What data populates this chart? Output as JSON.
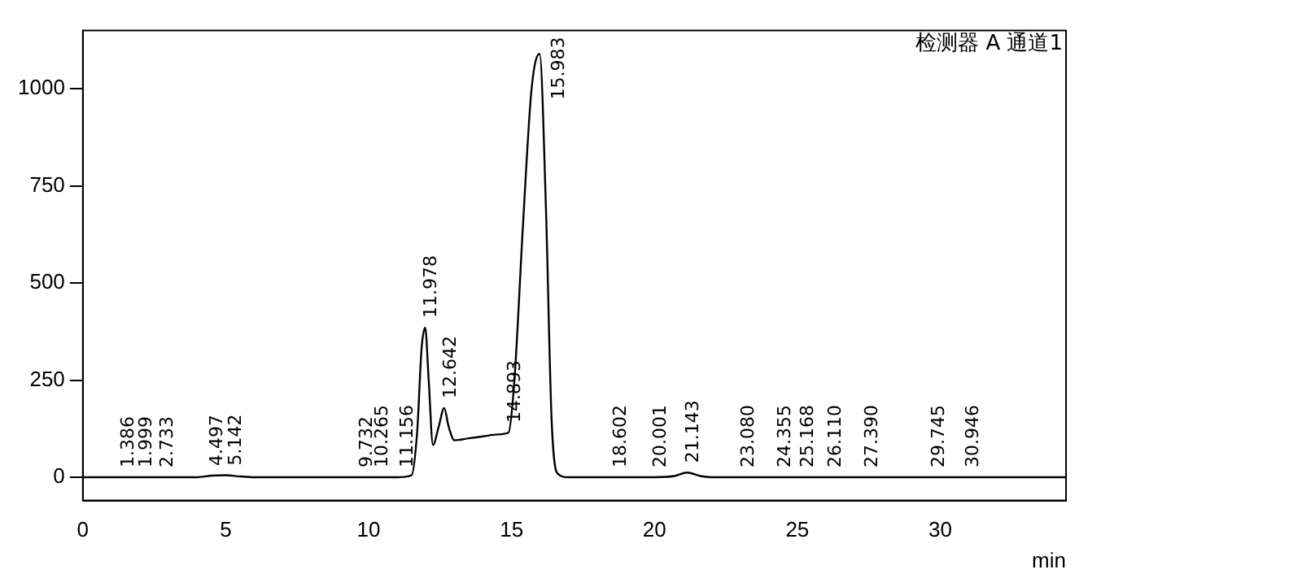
{
  "chart_data": {
    "type": "line",
    "xlabel": "min",
    "grid": false,
    "legend": false,
    "marker": "none",
    "line_style": "solid",
    "xlim": [
      0,
      34.4
    ],
    "xticks": [
      0,
      5,
      10,
      15,
      20,
      25,
      30
    ],
    "ylim": [
      -60,
      1150
    ],
    "yticks": [
      0,
      250,
      500,
      750,
      1000
    ],
    "series": [
      {
        "color": "#000000",
        "x": [
          0,
          1,
          2,
          3,
          4,
          4.5,
          5,
          5.5,
          6,
          8,
          10,
          11,
          11.5,
          11.7,
          11.85,
          11.978,
          12.1,
          12.25,
          12.45,
          12.642,
          12.8,
          13.0,
          13.5,
          14.0,
          14.5,
          14.893,
          15.1,
          15.4,
          15.7,
          15.983,
          16.2,
          16.4,
          16.6,
          17,
          18,
          19,
          20,
          20.7,
          21.143,
          21.6,
          22,
          24,
          26,
          28,
          30,
          32,
          34.4
        ],
        "values": [
          0,
          0,
          0,
          0,
          0,
          4,
          5,
          2,
          0,
          0,
          0,
          0,
          5,
          120,
          330,
          385,
          250,
          83,
          130,
          178,
          130,
          95,
          100,
          105,
          110,
          115,
          250,
          650,
          1000,
          1090,
          700,
          150,
          10,
          0,
          0,
          0,
          0,
          3,
          12,
          3,
          0,
          0,
          0,
          0,
          0,
          0,
          0
        ]
      }
    ],
    "annotations": [
      "检测器 A 通道1",
      {
        "text": "1.386",
        "x": 1.386,
        "y": 0
      },
      {
        "text": "1.999",
        "x": 1.999,
        "y": 0
      },
      {
        "text": "2.733",
        "x": 2.733,
        "y": 0
      },
      {
        "text": "4.497",
        "x": 4.497,
        "y": 4
      },
      {
        "text": "5.142",
        "x": 5.142,
        "y": 5
      },
      {
        "text": "9.732",
        "x": 9.732,
        "y": 0
      },
      {
        "text": "10.265",
        "x": 10.265,
        "y": 0
      },
      {
        "text": "11.156",
        "x": 11.156,
        "y": 0
      },
      {
        "text": "11.978",
        "x": 11.978,
        "y": 385
      },
      {
        "text": "12.642",
        "x": 12.642,
        "y": 178
      },
      {
        "text": "14.893",
        "x": 14.893,
        "y": 115
      },
      {
        "text": "15.983",
        "x": 15.983,
        "y": 1090
      },
      {
        "text": "18.602",
        "x": 18.602,
        "y": 0
      },
      {
        "text": "20.001",
        "x": 20.001,
        "y": 0
      },
      {
        "text": "21.143",
        "x": 21.143,
        "y": 12
      },
      {
        "text": "23.080",
        "x": 23.08,
        "y": 0
      },
      {
        "text": "24.355",
        "x": 24.355,
        "y": 0
      },
      {
        "text": "25.168",
        "x": 25.168,
        "y": 0
      },
      {
        "text": "26.110",
        "x": 26.11,
        "y": 0
      },
      {
        "text": "27.390",
        "x": 27.39,
        "y": 0
      },
      {
        "text": "29.745",
        "x": 29.745,
        "y": 0
      },
      {
        "text": "30.946",
        "x": 30.946,
        "y": 0
      }
    ]
  }
}
